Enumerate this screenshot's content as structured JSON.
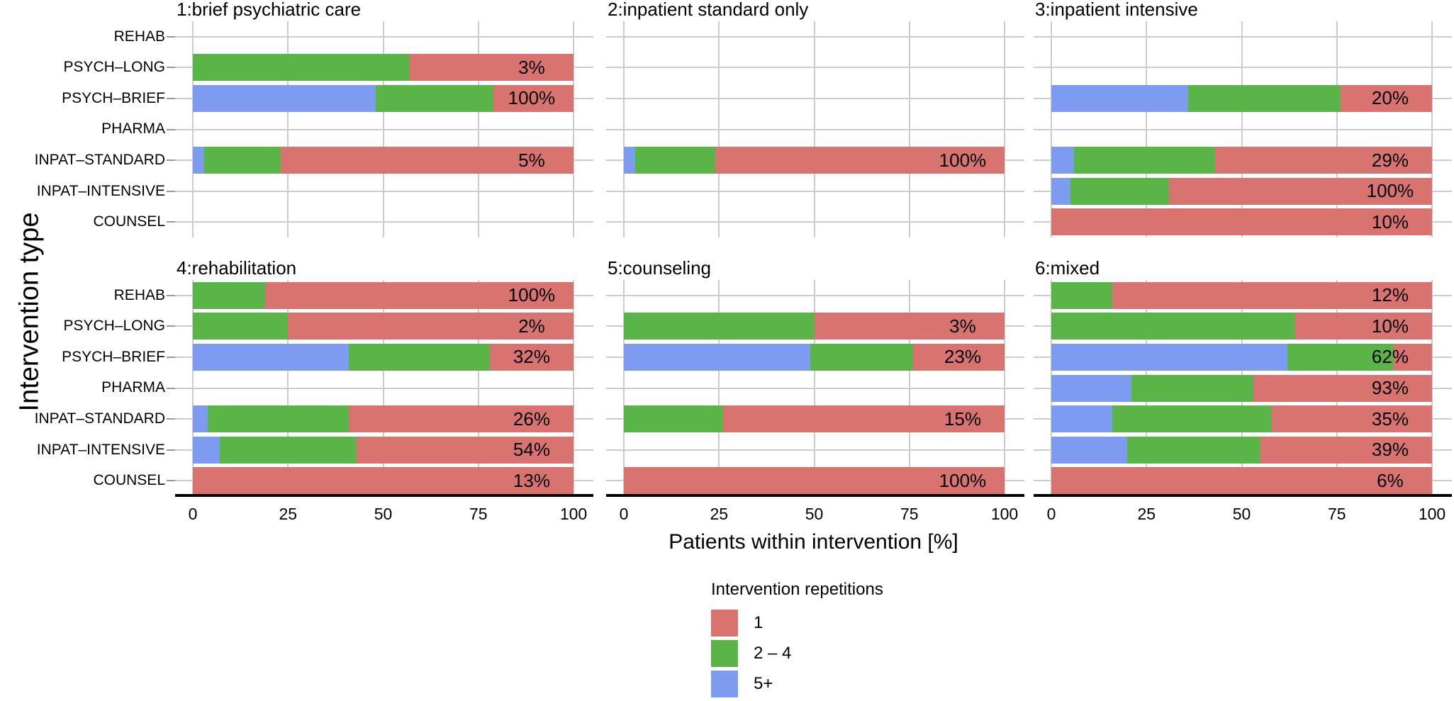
{
  "figure": {
    "x_axis_title": "Patients within intervention [%]",
    "y_axis_title": "Intervention type",
    "legend": {
      "title": "Intervention repetitions",
      "items": [
        {
          "label": "1",
          "key": "one",
          "color": "#D8736F"
        },
        {
          "label": "2 – 4",
          "key": "two_four",
          "color": "#5BB448"
        },
        {
          "label": "5+",
          "key": "five_plus",
          "color": "#7E9BF2"
        }
      ]
    }
  },
  "chart_data": {
    "type": "bar",
    "orientation": "horizontal",
    "stacked": true,
    "title": "",
    "xlabel": "Patients within intervention [%]",
    "ylabel": "Intervention type",
    "xlim": [
      0,
      100
    ],
    "x_ticks": [
      0,
      25,
      50,
      75,
      100
    ],
    "grid": true,
    "grid_color": "#cccccc",
    "panel_background": "#ffffff",
    "legend_position": "bottom",
    "bar_label_x": 89,
    "categories": [
      "REHAB",
      "PSYCH–LONG",
      "PSYCH–BRIEF",
      "PHARMA",
      "INPAT–STANDARD",
      "INPAT–INTENSIVE",
      "COUNSEL"
    ],
    "row_format": [
      "5+ segment %",
      "2 – 4 segment %",
      "1 segment %",
      "label"
    ],
    "panels": [
      {
        "title": "1:brief psychiatric care",
        "rows": [
          null,
          [
            0,
            57,
            43,
            "3%"
          ],
          [
            48,
            31,
            21,
            "100%"
          ],
          null,
          [
            3,
            20,
            77,
            "5%"
          ],
          null,
          null
        ]
      },
      {
        "title": "2:inpatient standard only",
        "rows": [
          null,
          null,
          null,
          null,
          [
            3,
            21,
            76,
            "100%"
          ],
          null,
          null
        ]
      },
      {
        "title": "3:inpatient intensive",
        "rows": [
          null,
          null,
          [
            36,
            40,
            24,
            "20%"
          ],
          null,
          [
            6,
            37,
            57,
            "29%"
          ],
          [
            5,
            26,
            69,
            "100%"
          ],
          [
            0,
            0,
            100,
            "10%"
          ]
        ]
      },
      {
        "title": "4:rehabilitation",
        "rows": [
          [
            0,
            19,
            81,
            "100%"
          ],
          [
            0,
            25,
            75,
            "2%"
          ],
          [
            41,
            37,
            22,
            "32%"
          ],
          null,
          [
            4,
            37,
            59,
            "26%"
          ],
          [
            7,
            36,
            57,
            "54%"
          ],
          [
            0,
            0,
            100,
            "13%"
          ]
        ]
      },
      {
        "title": "5:counseling",
        "rows": [
          null,
          [
            0,
            50,
            50,
            "3%"
          ],
          [
            49,
            27,
            24,
            "23%"
          ],
          null,
          [
            0,
            26,
            74,
            "15%"
          ],
          null,
          [
            0,
            0,
            100,
            "100%"
          ]
        ]
      },
      {
        "title": "6:mixed",
        "rows": [
          [
            0,
            16,
            84,
            "12%"
          ],
          [
            0,
            64,
            36,
            "10%"
          ],
          [
            62,
            28,
            10,
            "62%"
          ],
          [
            21,
            32,
            47,
            "93%"
          ],
          [
            16,
            42,
            42,
            "35%"
          ],
          [
            20,
            35,
            45,
            "39%"
          ],
          [
            0,
            0,
            100,
            "6%"
          ]
        ]
      }
    ]
  }
}
